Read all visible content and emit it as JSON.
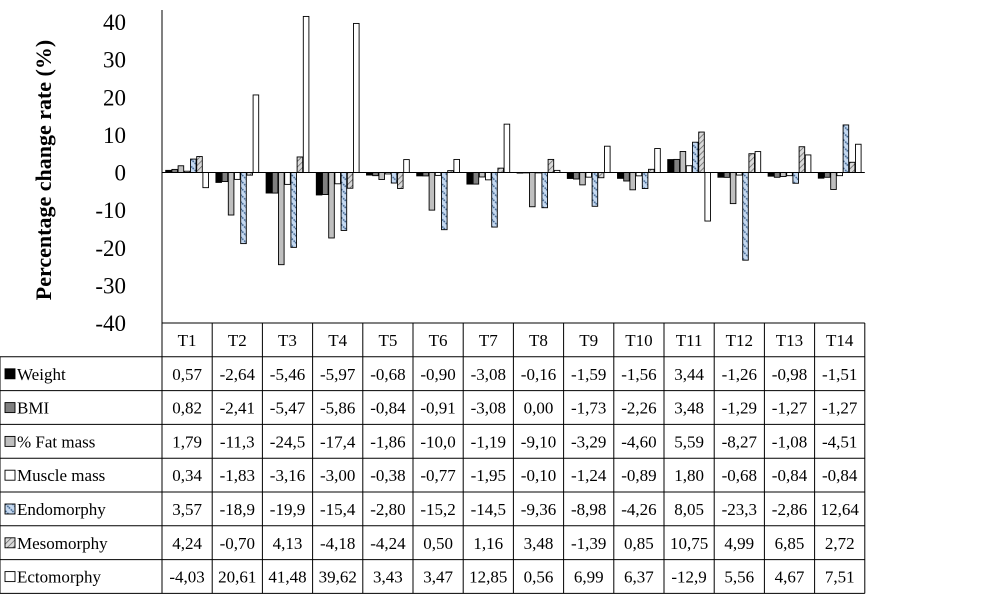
{
  "chart_data": {
    "type": "bar",
    "ylabel": "Percentage change rate (%)",
    "ylim": [
      -40,
      40
    ],
    "yticks": [
      40,
      30,
      20,
      10,
      0,
      -10,
      -20,
      -30,
      -40
    ],
    "categories": [
      "T1",
      "T2",
      "T3",
      "T4",
      "T5",
      "T6",
      "T7",
      "T8",
      "T9",
      "T10",
      "T11",
      "T12",
      "T13",
      "T14"
    ],
    "legend_placement": "data-table-left",
    "series": [
      {
        "name": "Weight",
        "fill": "#000000",
        "pattern": "solid",
        "labels": [
          "0,57",
          "-2,64",
          "-5,46",
          "-5,97",
          "-0,68",
          "-0,90",
          "-3,08",
          "-0,16",
          "-1,59",
          "-1,56",
          "3,44",
          "-1,26",
          "-0,98",
          "-1,51"
        ],
        "values": [
          0.57,
          -2.64,
          -5.46,
          -5.97,
          -0.68,
          -0.9,
          -3.08,
          -0.16,
          -1.59,
          -1.56,
          3.44,
          -1.26,
          -0.98,
          -1.51
        ]
      },
      {
        "name": "BMI",
        "fill": "#7f7f7f",
        "pattern": "solid",
        "labels": [
          "0,82",
          "-2,41",
          "-5,47",
          "-5,86",
          "-0,84",
          "-0,91",
          "-3,08",
          "0,00",
          "-1,73",
          "-2,26",
          "3,48",
          "-1,29",
          "-1,27",
          "-1,27"
        ],
        "values": [
          0.82,
          -2.41,
          -5.47,
          -5.86,
          -0.84,
          -0.91,
          -3.08,
          0.0,
          -1.73,
          -2.26,
          3.48,
          -1.29,
          -1.27,
          -1.27
        ]
      },
      {
        "name": "% Fat mass",
        "fill": "#bfbfbf",
        "pattern": "solid",
        "labels": [
          "1,79",
          "-11,3",
          "-24,5",
          "-17,4",
          "-1,86",
          "-10,0",
          "-1,19",
          "-9,10",
          "-3,29",
          "-4,60",
          "5,59",
          "-8,27",
          "-1,08",
          "-4,51"
        ],
        "values": [
          1.79,
          -11.3,
          -24.5,
          -17.4,
          -1.86,
          -10.0,
          -1.19,
          -9.1,
          -3.29,
          -4.6,
          5.59,
          -8.27,
          -1.08,
          -4.51
        ]
      },
      {
        "name": "Muscle mass",
        "fill": "#ffffff",
        "pattern": "solid",
        "labels": [
          "0,34",
          "-1,83",
          "-3,16",
          "-3,00",
          "-0,38",
          "-0,77",
          "-1,95",
          "-0,10",
          "-1,24",
          "-0,89",
          "1,80",
          "-0,68",
          "-0,84",
          "-0,84"
        ],
        "values": [
          0.34,
          -1.83,
          -3.16,
          -3.0,
          -0.38,
          -0.77,
          -1.95,
          -0.1,
          -1.24,
          -0.89,
          1.8,
          -0.68,
          -0.84,
          -0.84
        ]
      },
      {
        "name": "Endomorphy",
        "fill": "#c5d9f1",
        "pattern": "dots",
        "labels": [
          "3,57",
          "-18,9",
          "-19,9",
          "-15,4",
          "-2,80",
          "-15,2",
          "-14,5",
          "-9,36",
          "-8,98",
          "-4,26",
          "8,05",
          "-23,3",
          "-2,86",
          "12,64"
        ],
        "values": [
          3.57,
          -18.9,
          -19.9,
          -15.4,
          -2.8,
          -15.2,
          -14.5,
          -9.36,
          -8.98,
          -4.26,
          8.05,
          -23.3,
          -2.86,
          12.64
        ]
      },
      {
        "name": "Mesomorphy",
        "fill": "#d9d9d9",
        "pattern": "hatch",
        "labels": [
          "4,24",
          "-0,70",
          "4,13",
          "-4,18",
          "-4,24",
          "0,50",
          "1,16",
          "3,48",
          "-1,39",
          "0,85",
          "10,75",
          "4,99",
          "6,85",
          "2,72"
        ],
        "values": [
          4.24,
          -0.7,
          4.13,
          -4.18,
          -4.24,
          0.5,
          1.16,
          3.48,
          -1.39,
          0.85,
          10.75,
          4.99,
          6.85,
          2.72
        ]
      },
      {
        "name": "Ectomorphy",
        "fill": "#ffffff",
        "pattern": "solid",
        "labels": [
          "-4,03",
          "20,61",
          "41,48",
          "39,62",
          "3,43",
          "3,47",
          "12,85",
          "0,56",
          "6,99",
          "6,37",
          "-12,9",
          "5,56",
          "4,67",
          "7,51"
        ],
        "values": [
          -4.03,
          20.61,
          41.48,
          39.62,
          3.43,
          3.47,
          12.85,
          0.56,
          6.99,
          6.37,
          -12.9,
          5.56,
          4.67,
          7.51
        ]
      }
    ]
  }
}
